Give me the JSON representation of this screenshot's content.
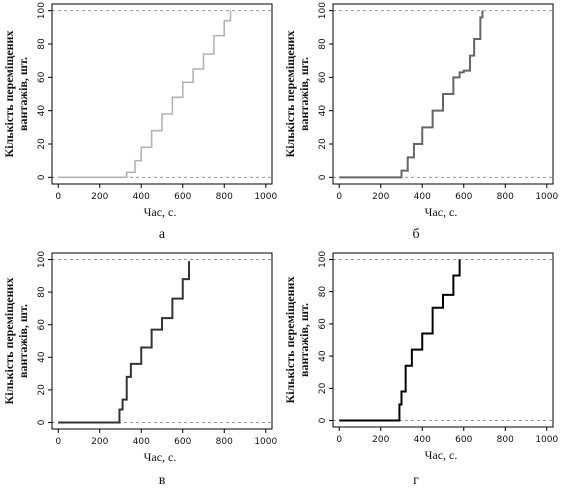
{
  "chart_data": [
    {
      "type": "line",
      "subtitle": "а",
      "xlabel": "Час, с.",
      "ylabel_lines": [
        "Кількість переміщених",
        "вантажів, шт."
      ],
      "xlim": [
        -30,
        1030
      ],
      "ylim": [
        -4,
        104
      ],
      "xticks": [
        "0",
        "200",
        "400",
        "600",
        "800",
        "1000"
      ],
      "yticks": [
        "0",
        "20",
        "40",
        "60",
        "80",
        "100"
      ],
      "reference_lines": [
        0,
        100
      ],
      "series_color": "#b3b3b3",
      "x": [
        0,
        300,
        330,
        370,
        400,
        450,
        500,
        550,
        600,
        650,
        700,
        750,
        800,
        830
      ],
      "y": [
        0,
        0,
        3,
        10,
        18,
        28,
        38,
        48,
        57,
        65,
        74,
        85,
        94,
        100
      ]
    },
    {
      "type": "line",
      "subtitle": "б",
      "xlabel": "Час, с.",
      "ylabel_lines": [
        "Кількість переміщених",
        "вантажів, шт."
      ],
      "xlim": [
        -30,
        1030
      ],
      "ylim": [
        -4,
        104
      ],
      "xticks": [
        "0",
        "200",
        "400",
        "600",
        "800",
        "1000"
      ],
      "yticks": [
        "0",
        "20",
        "40",
        "60",
        "80",
        "100"
      ],
      "reference_lines": [
        0,
        100
      ],
      "series_color": "#666666",
      "x": [
        0,
        295,
        300,
        330,
        360,
        400,
        450,
        500,
        550,
        580,
        600,
        630,
        650,
        680,
        690
      ],
      "y": [
        0,
        0,
        4,
        12,
        20,
        30,
        40,
        50,
        60,
        63,
        64,
        73,
        83,
        96,
        100
      ]
    },
    {
      "type": "line",
      "subtitle": "в",
      "xlabel": "Час, с.",
      "ylabel_lines": [
        "Кількість переміщених",
        "вантажів, шт."
      ],
      "xlim": [
        -30,
        1030
      ],
      "ylim": [
        -4,
        104
      ],
      "xticks": [
        "0",
        "200",
        "400",
        "600",
        "800",
        "1000"
      ],
      "yticks": [
        "0",
        "20",
        "40",
        "60",
        "80",
        "100"
      ],
      "reference_lines": [
        0,
        100
      ],
      "series_color": "#333333",
      "x": [
        0,
        285,
        295,
        310,
        330,
        350,
        400,
        450,
        500,
        550,
        600,
        630
      ],
      "y": [
        0,
        0,
        8,
        14,
        28,
        36,
        46,
        57,
        64,
        76,
        88,
        99
      ]
    },
    {
      "type": "line",
      "subtitle": "г",
      "xlabel": "Час, с.",
      "ylabel_lines": [
        "Кількість переміщених",
        "вантажів, шт."
      ],
      "xlim": [
        -30,
        1030
      ],
      "ylim": [
        -4,
        104
      ],
      "xticks": [
        "0",
        "200",
        "400",
        "600",
        "800",
        "1000"
      ],
      "yticks": [
        "0",
        "20",
        "40",
        "60",
        "80",
        "100"
      ],
      "reference_lines": [
        0,
        100
      ],
      "series_color": "#000000",
      "x": [
        0,
        285,
        290,
        300,
        320,
        350,
        400,
        450,
        500,
        550,
        580
      ],
      "y": [
        0,
        0,
        10,
        18,
        34,
        44,
        54,
        70,
        78,
        90,
        100
      ]
    }
  ]
}
